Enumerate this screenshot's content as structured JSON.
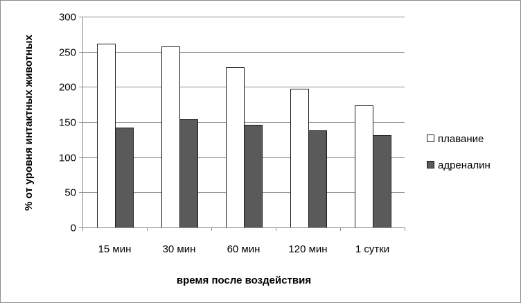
{
  "chart_data": {
    "type": "bar",
    "categories": [
      "15 мин",
      "30 мин",
      "60 мин",
      "120 мин",
      "1 сутки"
    ],
    "series": [
      {
        "name": "плавание",
        "values": [
          262,
          258,
          228,
          197,
          174
        ],
        "color": "#ffffff"
      },
      {
        "name": "адреналин",
        "values": [
          142,
          154,
          146,
          138,
          131
        ],
        "color": "#5a5a5a"
      }
    ],
    "title": "",
    "xlabel": "время после воздействия",
    "ylabel": "% от уровня интактных животных",
    "ylim": [
      0,
      300
    ],
    "yticks": [
      0,
      50,
      100,
      150,
      200,
      250,
      300
    ],
    "grid": true,
    "legend_position": "right"
  }
}
